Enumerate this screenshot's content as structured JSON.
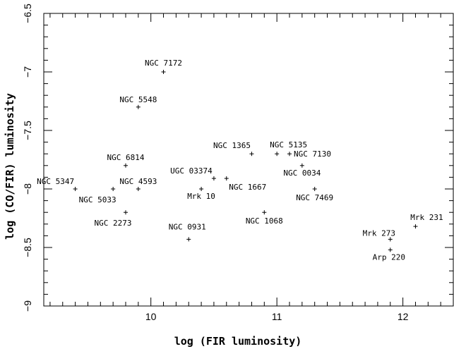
{
  "chart_data": {
    "type": "scatter",
    "xlabel": "log (FIR luminosity)",
    "ylabel": "log (CO/FIR) luminosity",
    "xlim": [
      9.15,
      12.4
    ],
    "ylim": [
      -9,
      -6.5
    ],
    "x_ticks": [
      10,
      11,
      12
    ],
    "x_tick_labels": [
      "10",
      "11",
      "12"
    ],
    "y_ticks": [
      -9,
      -8.5,
      -8,
      -7.5,
      -7,
      -6.5
    ],
    "y_tick_labels": [
      "−9",
      "−8.5",
      "−8",
      "−7.5",
      "−7",
      "−6.5"
    ],
    "marker": "plus",
    "grid": false,
    "points": [
      {
        "name": "NGC 7172",
        "x": 10.1,
        "y": -7.0
      },
      {
        "name": "NGC 5548",
        "x": 9.9,
        "y": -7.3
      },
      {
        "name": "NGC 6814",
        "x": 9.8,
        "y": -7.8
      },
      {
        "name": "NGC 5347",
        "x": 9.4,
        "y": -8.0
      },
      {
        "name": "NGC 5033",
        "x": 9.7,
        "y": -8.0
      },
      {
        "name": "NGC 4593",
        "x": 9.9,
        "y": -8.0
      },
      {
        "name": "NGC 2273",
        "x": 9.8,
        "y": -8.2
      },
      {
        "name": "UGC 03374",
        "x": 10.5,
        "y": -7.91
      },
      {
        "name": "Mrk 10",
        "x": 10.4,
        "y": -8.0
      },
      {
        "name": "NGC 1667",
        "x": 10.6,
        "y": -7.91
      },
      {
        "name": "NGC 1365",
        "x": 10.8,
        "y": -7.7
      },
      {
        "name": "NGC 5135",
        "x": 11.0,
        "y": -7.7
      },
      {
        "name": "NGC 7130",
        "x": 11.1,
        "y": -7.7
      },
      {
        "name": "NGC 0034",
        "x": 11.2,
        "y": -7.8
      },
      {
        "name": "NGC 7469",
        "x": 11.3,
        "y": -8.0
      },
      {
        "name": "NGC 1068",
        "x": 10.9,
        "y": -8.2
      },
      {
        "name": "NGC 0931",
        "x": 10.3,
        "y": -8.43
      },
      {
        "name": "Mrk 231",
        "x": 12.1,
        "y": -8.32
      },
      {
        "name": "Mrk 273",
        "x": 11.9,
        "y": -8.43
      },
      {
        "name": "Arp 220",
        "x": 11.9,
        "y": -8.52
      }
    ]
  }
}
